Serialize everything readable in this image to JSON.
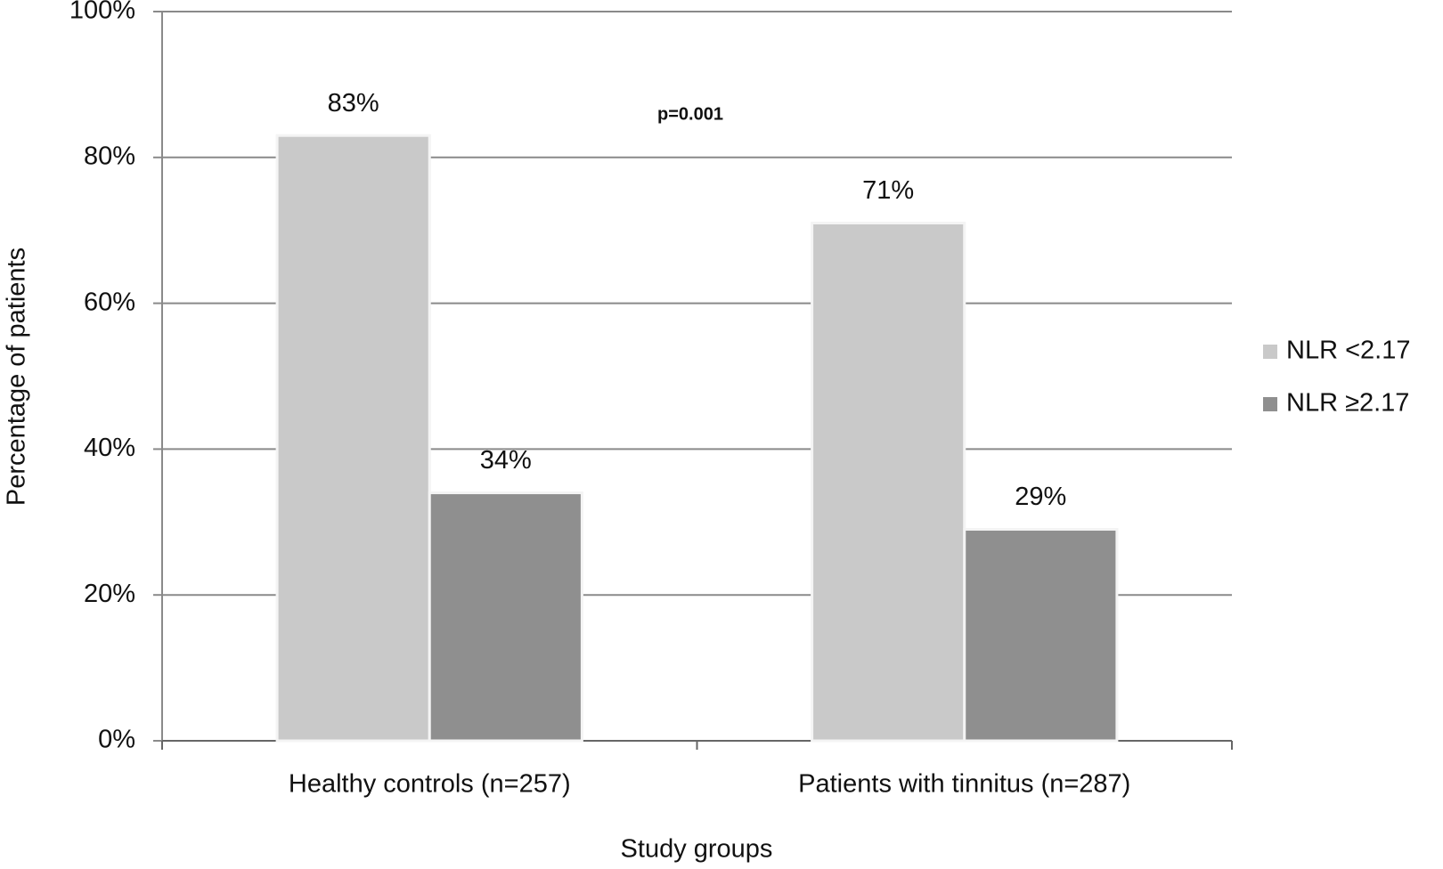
{
  "chart_data": {
    "type": "bar",
    "y_label": "Percentage of patients",
    "x_label": "Study groups",
    "annotation": "p=0.001",
    "categories": [
      "Healthy controls (n=257)",
      "Patients with tinnitus (n=287)"
    ],
    "series": [
      {
        "name": "NLR <2.17",
        "color": "#c9c9c9",
        "values": [
          83,
          71
        ],
        "value_labels": [
          "83%",
          "71%"
        ]
      },
      {
        "name": "NLR ≥2.17",
        "color": "#8f8f8f",
        "values": [
          34,
          29
        ],
        "value_labels": [
          "34%",
          "29%"
        ]
      }
    ],
    "ylim": [
      0,
      100
    ],
    "yticks": [
      {
        "value": 0,
        "label": "0%"
      },
      {
        "value": 20,
        "label": "20%"
      },
      {
        "value": 40,
        "label": "40%"
      },
      {
        "value": 60,
        "label": "60%"
      },
      {
        "value": 80,
        "label": "80%"
      },
      {
        "value": 100,
        "label": "100%"
      }
    ],
    "grid": true,
    "legend": "right"
  }
}
